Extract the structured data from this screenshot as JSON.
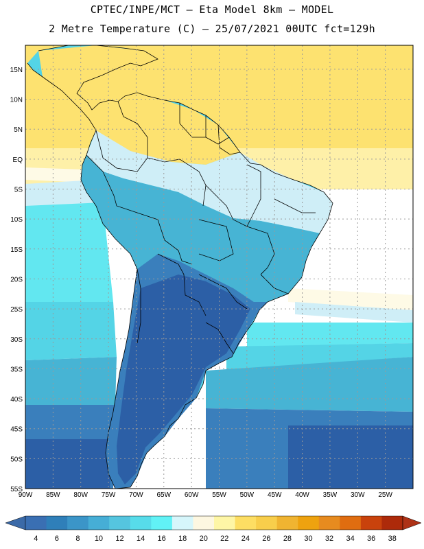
{
  "header": {
    "line1": "CPTEC/INPE/MCT –  Eta Model 8km – MODEL",
    "line2": "2 Metre Temperature (C) – 25/07/2021 00UTC fct=129h"
  },
  "map": {
    "lon_range": [
      -90,
      -20
    ],
    "lat_range": [
      -55,
      19
    ],
    "lat_labels": [
      "15N",
      "10N",
      "5N",
      "EQ",
      "5S",
      "10S",
      "15S",
      "20S",
      "25S",
      "30S",
      "35S",
      "40S",
      "45S",
      "50S",
      "55S"
    ],
    "lon_labels": [
      "90W",
      "85W",
      "80W",
      "75W",
      "70W",
      "65W",
      "60W",
      "55W",
      "50W",
      "45W",
      "40W",
      "35W",
      "30W",
      "25W"
    ]
  },
  "colorbar": {
    "labels": [
      "4",
      "6",
      "8",
      "10",
      "12",
      "14",
      "16",
      "18",
      "20",
      "22",
      "24",
      "26",
      "28",
      "30",
      "32",
      "34",
      "36",
      "38"
    ],
    "colors": [
      "#3a6fb3",
      "#2f7fb9",
      "#3b95c8",
      "#46aed6",
      "#55c5df",
      "#57dcea",
      "#61f2f6",
      "#d6f6fb",
      "#fdf7e1",
      "#fef6a6",
      "#fdde63",
      "#f8ce4b",
      "#f0b431",
      "#eea20f",
      "#e78b1f",
      "#e06d10",
      "#c9420c",
      "#ad2a0a"
    ],
    "under_color": "#3b6aa8",
    "over_color": "#ae3216"
  },
  "field_colors": {
    "ocean_warm": "#fde270",
    "ocean_mild": "#fef0a8",
    "ocean_22": "#fefae6",
    "ocean_20": "#cfeef7",
    "ocean_18": "#62e7f0",
    "ocean_16": "#54d4e6",
    "ocean_14": "#47b4d4",
    "ocean_cold": "#3a7fbc",
    "land_cold": "#2c5fa6"
  }
}
